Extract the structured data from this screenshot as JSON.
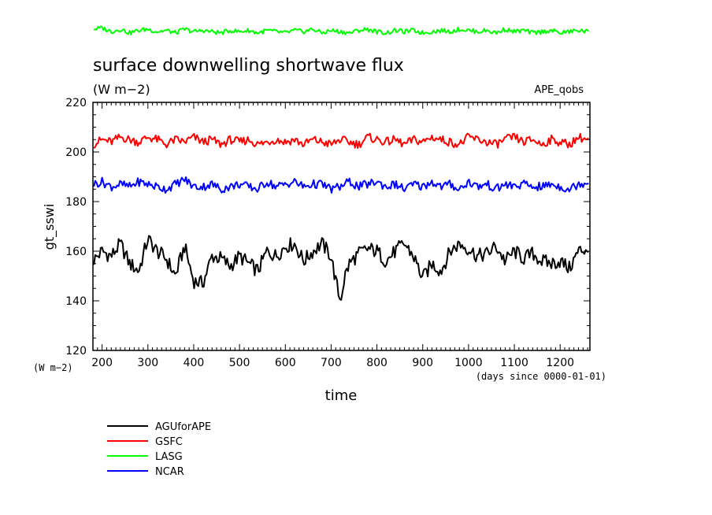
{
  "chart_data": {
    "type": "line",
    "title": "surface downwelling shortwave flux",
    "units": "(W m−2)",
    "experiment": "APE_qobs",
    "xlabel": "time",
    "xunits": "(days since 0000-01-01)",
    "ylabel": "gt_sswi",
    "yunits": "(W m−2)",
    "xlim": [
      180,
      1265
    ],
    "ylim": [
      120,
      220
    ],
    "xticks": [
      200,
      300,
      400,
      500,
      600,
      700,
      800,
      900,
      1000,
      1100,
      1200
    ],
    "yticks": [
      120,
      140,
      160,
      180,
      200,
      220
    ],
    "grid": false,
    "legend_position": "bottom-left",
    "series": [
      {
        "name": "AGUforAPE",
        "color": "#000000",
        "x": [
          180,
          200,
          220,
          240,
          260,
          280,
          300,
          320,
          340,
          360,
          380,
          400,
          420,
          440,
          460,
          480,
          500,
          520,
          540,
          560,
          580,
          600,
          620,
          640,
          660,
          680,
          700,
          710,
          720,
          730,
          740,
          760,
          780,
          800,
          820,
          840,
          860,
          880,
          900,
          920,
          940,
          960,
          980,
          1000,
          1020,
          1040,
          1060,
          1080,
          1100,
          1120,
          1140,
          1160,
          1180,
          1200,
          1220,
          1240,
          1260
        ],
        "values": [
          156,
          160,
          158,
          163,
          155,
          152,
          165,
          160,
          157,
          150,
          162,
          148,
          147,
          158,
          157,
          154,
          158,
          155,
          152,
          160,
          158,
          162,
          163,
          156,
          160,
          163,
          158,
          148,
          140,
          150,
          155,
          159,
          161,
          160,
          156,
          160,
          163,
          158,
          149,
          155,
          152,
          160,
          163,
          161,
          158,
          159,
          162,
          156,
          160,
          157,
          159,
          156,
          155,
          156,
          153,
          160,
          161
        ]
      },
      {
        "name": "GSFC",
        "color": "#ff0000",
        "x": [
          180,
          200,
          220,
          240,
          260,
          280,
          300,
          320,
          340,
          360,
          380,
          400,
          420,
          440,
          460,
          480,
          500,
          520,
          540,
          560,
          580,
          600,
          620,
          640,
          660,
          680,
          700,
          720,
          740,
          760,
          780,
          800,
          820,
          840,
          860,
          880,
          900,
          920,
          940,
          960,
          980,
          1000,
          1020,
          1040,
          1060,
          1080,
          1100,
          1120,
          1140,
          1160,
          1180,
          1200,
          1220,
          1240,
          1260
        ],
        "values": [
          203,
          205,
          204,
          206,
          205,
          204,
          206,
          205,
          203,
          205,
          204,
          206,
          204,
          205,
          203,
          205,
          204,
          205,
          203,
          204,
          205,
          204,
          205,
          203,
          205,
          204,
          203,
          205,
          204,
          203,
          206,
          205,
          204,
          205,
          203,
          205,
          204,
          206,
          205,
          204,
          203,
          206,
          205,
          204,
          203,
          205,
          206,
          204,
          205,
          203,
          205,
          204,
          203,
          206,
          205
        ]
      },
      {
        "name": "LASG",
        "color": "#00ff00",
        "x": [
          180,
          200,
          220,
          240,
          260,
          280,
          300,
          320,
          340,
          360,
          380,
          400,
          420,
          440,
          460,
          480,
          500,
          520,
          540,
          560,
          580,
          600,
          620,
          640,
          660,
          680,
          700,
          720,
          740,
          760,
          780,
          800,
          820,
          840,
          860,
          880,
          900,
          920,
          940,
          960,
          980,
          1000,
          1020,
          1040,
          1060,
          1080,
          1100,
          1120,
          1140,
          1160,
          1180,
          1200,
          1220,
          1240,
          1260
        ],
        "values": [
          249.5,
          250,
          248.5,
          249.5,
          248,
          249,
          249.5,
          248.5,
          249,
          248,
          249.5,
          248.5,
          249,
          248.5,
          248,
          249,
          248.5,
          249,
          248,
          249,
          248.5,
          248,
          249,
          248.5,
          249.5,
          248,
          249,
          248.5,
          248,
          249,
          249.5,
          248.5,
          248,
          249,
          248.5,
          249,
          248,
          248.5,
          249,
          248.5,
          249.5,
          249,
          248.5,
          249,
          248,
          249.5,
          248.5,
          249,
          248,
          248.5,
          249,
          248,
          248.5,
          249,
          248.5
        ]
      },
      {
        "name": "NCAR",
        "color": "#0000ff",
        "x": [
          180,
          200,
          220,
          240,
          260,
          280,
          300,
          320,
          340,
          360,
          380,
          400,
          420,
          440,
          460,
          480,
          500,
          520,
          540,
          560,
          580,
          600,
          620,
          640,
          660,
          680,
          700,
          720,
          740,
          760,
          780,
          800,
          820,
          840,
          860,
          880,
          900,
          920,
          940,
          960,
          980,
          1000,
          1020,
          1040,
          1060,
          1080,
          1100,
          1120,
          1140,
          1160,
          1180,
          1200,
          1220,
          1240,
          1260
        ],
        "values": [
          187,
          188,
          186,
          187,
          186,
          188,
          187,
          186,
          185,
          187,
          189,
          186,
          186,
          187,
          185,
          186,
          187,
          186,
          185,
          188,
          186,
          187,
          188,
          186,
          187,
          187,
          185,
          186,
          188,
          186,
          187,
          188,
          186,
          187,
          185,
          187,
          186,
          188,
          186,
          187,
          185,
          188,
          186,
          187,
          185,
          187,
          186,
          187,
          186,
          186,
          187,
          186,
          185,
          187,
          188
        ]
      }
    ]
  }
}
